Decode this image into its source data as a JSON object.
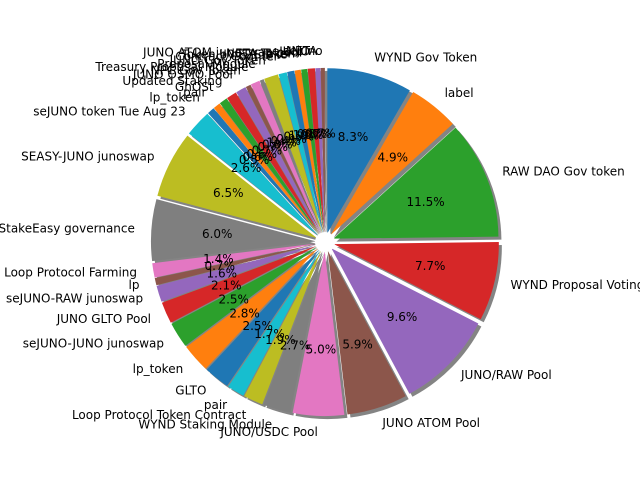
{
  "chart_data": {
    "type": "pie",
    "title": "",
    "start_angle_deg": 90,
    "direction": "clockwise",
    "shadow": true,
    "exploded": true,
    "slices": [
      {
        "label": "WYND Gov Token",
        "value": 8.3,
        "pct_label": "8.3%",
        "color": "#1f77b4"
      },
      {
        "label": "label",
        "value": 4.9,
        "pct_label": "4.9%",
        "color": "#ff7f0e"
      },
      {
        "label": "RAW DAO Gov token",
        "value": 11.5,
        "pct_label": "11.5%",
        "color": "#2ca02c"
      },
      {
        "label": "WYND Proposal Voting",
        "value": 7.7,
        "pct_label": "7.7%",
        "color": "#d62728"
      },
      {
        "label": "JUNO/RAW Pool",
        "value": 9.6,
        "pct_label": "9.6%",
        "color": "#9467bd"
      },
      {
        "label": "JUNO ATOM Pool",
        "value": 5.9,
        "pct_label": "5.9%",
        "color": "#8c564b"
      },
      {
        "label": "JUNO/USDC Pool",
        "value": 5.0,
        "pct_label": "5.0%",
        "color": "#e377c2"
      },
      {
        "label": "WYND Staking Module",
        "value": 2.7,
        "pct_label": "2.7%",
        "color": "#7f7f7f"
      },
      {
        "label": "Loop Protocol Token Contract",
        "value": 1.9,
        "pct_label": "1.9%",
        "color": "#bcbd22"
      },
      {
        "label": "pair",
        "value": 1.7,
        "pct_label": "1.7%",
        "color": "#17becf"
      },
      {
        "label": "GLTO",
        "value": 2.5,
        "pct_label": "2.5%",
        "color": "#1f77b4"
      },
      {
        "label": "lp_token",
        "value": 2.8,
        "pct_label": "2.8%",
        "color": "#ff7f0e"
      },
      {
        "label": "seJUNO-JUNO junoswap",
        "value": 2.5,
        "pct_label": "2.5%",
        "color": "#2ca02c"
      },
      {
        "label": "JUNO GLTO Pool",
        "value": 2.1,
        "pct_label": "2.1%",
        "color": "#d62728"
      },
      {
        "label": "seJUNO-RAW junoswap",
        "value": 1.6,
        "pct_label": "1.6%",
        "color": "#9467bd"
      },
      {
        "label": "lp",
        "value": 0.7,
        "pct_label": "0.7%",
        "color": "#8c564b"
      },
      {
        "label": "Loop Protocol Farming",
        "value": 1.4,
        "pct_label": "1.4%",
        "color": "#e377c2"
      },
      {
        "label": "StakeEasy governance",
        "value": 6.0,
        "pct_label": "6.0%",
        "color": "#7f7f7f"
      },
      {
        "label": "SEASY-JUNO junoswap",
        "value": 6.5,
        "pct_label": "6.5%",
        "color": "#bcbd22"
      },
      {
        "label": "seJUNO token Tue Aug 23",
        "value": 2.6,
        "pct_label": "2.6%",
        "color": "#17becf"
      },
      {
        "label": "lp_token",
        "value": 0.7,
        "pct_label": "",
        "color": "#1f77b4"
      },
      {
        "label": "pair",
        "value": 0.7,
        "pct_label": "",
        "color": "#ff7f0e"
      },
      {
        "label": "GhOSt",
        "value": 0.8,
        "pct_label": "",
        "color": "#2ca02c"
      },
      {
        "label": "Updated Staking",
        "value": 1.0,
        "pct_label": "",
        "color": "#d62728"
      },
      {
        "label": "JUNO OSMO Pool",
        "value": 1.0,
        "pct_label": "",
        "color": "#9467bd"
      },
      {
        "label": "NPC Gov Token",
        "value": 0.5,
        "pct_label": "",
        "color": "#8c564b"
      },
      {
        "label": "Treasury Proposal Module",
        "value": 0.9,
        "pct_label": "",
        "color": "#e377c2"
      },
      {
        "label": "Proposal Module",
        "value": 0.4,
        "pct_label": "",
        "color": "#7f7f7f"
      },
      {
        "label": "JUNO Gov Token",
        "value": 1.4,
        "pct_label": "",
        "color": "#bcbd22"
      },
      {
        "label": "Contract Counter",
        "value": 0.8,
        "pct_label": "",
        "color": "#17becf"
      },
      {
        "label": "Token by EZStake",
        "value": 0.7,
        "pct_label": "",
        "color": "#1f77b4"
      },
      {
        "label": "NETA Token",
        "value": 0.6,
        "pct_label": "",
        "color": "#ff7f0e"
      },
      {
        "label": "JUNO ATOM junoswap pool",
        "value": 0.6,
        "pct_label": "",
        "color": "#2ca02c"
      },
      {
        "label": "seJUNO",
        "value": 0.7,
        "pct_label": "",
        "color": "#d62728"
      },
      {
        "label": "NETA",
        "value": 0.5,
        "pct_label": "",
        "color": "#9467bd"
      },
      {
        "label": "sejuno",
        "value": 0.4,
        "pct_label": "",
        "color": "#8c564b"
      }
    ],
    "minor_pct_labels": [
      "0.5%",
      "0.6%",
      "0.6%",
      "0.7%",
      "0.7%",
      "0.8%",
      "1.4%",
      "0.4%",
      "0.9%",
      "0.5%",
      "1.0%",
      "1.0%",
      "0.8%",
      "0.7%",
      "0.7%"
    ]
  }
}
